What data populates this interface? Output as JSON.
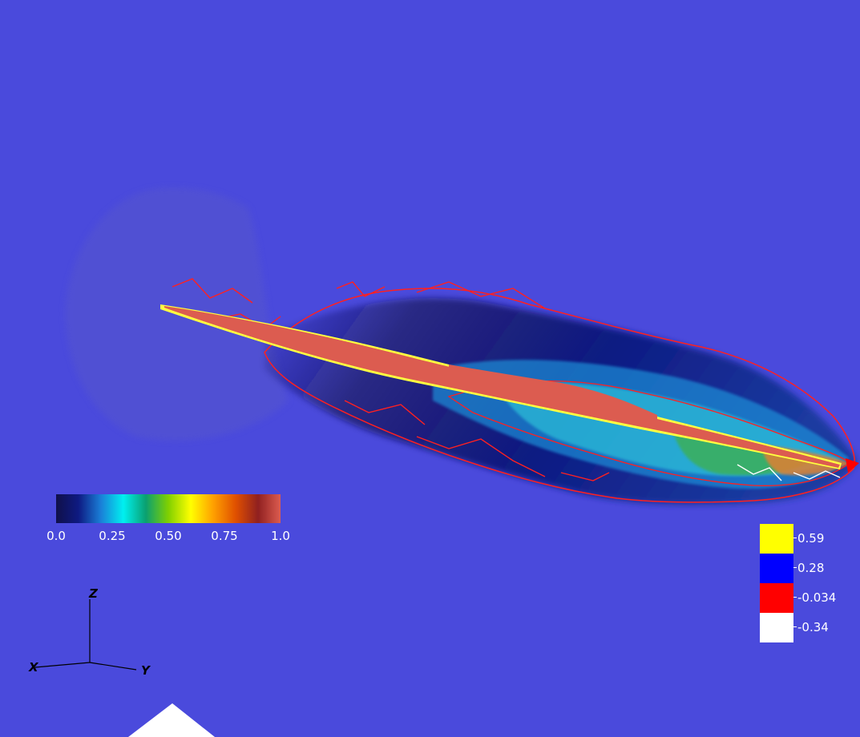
{
  "scalar_bar": {
    "ticks": [
      "0.0",
      "0.25",
      "0.50",
      "0.75",
      "1.0"
    ],
    "colors": [
      "#10104a",
      "#0e1a82",
      "#1a7fd8",
      "#00f0f0",
      "#0aa070",
      "#80d000",
      "#ffff00",
      "#ffa000",
      "#e05000",
      "#902020",
      "#dc5c50"
    ]
  },
  "contour_legend": [
    {
      "label": "0.59",
      "color": "#ffff00"
    },
    {
      "label": "0.28",
      "color": "#0000ff"
    },
    {
      "label": "-0.034",
      "color": "#ff0000"
    },
    {
      "label": "-0.34",
      "color": "#ffffff"
    }
  ],
  "axes": {
    "x": "X",
    "y": "Y",
    "z": "Z"
  },
  "colors": {
    "background": "#4a4adc",
    "contour": "#ff2020"
  }
}
